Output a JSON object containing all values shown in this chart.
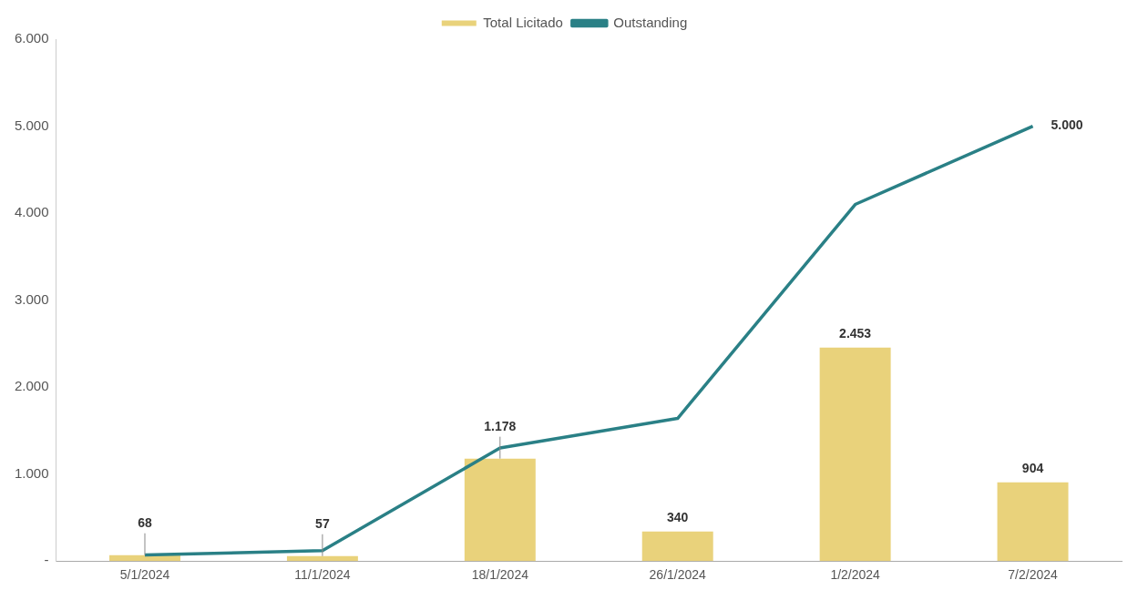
{
  "chart_data": {
    "type": "bar",
    "categories": [
      "5/1/2024",
      "11/1/2024",
      "18/1/2024",
      "26/1/2024",
      "1/2/2024",
      "7/2/2024"
    ],
    "series": [
      {
        "name": "Total Licitado",
        "color": "#e9d27b",
        "values": [
          68,
          57,
          1178,
          340,
          2453,
          904
        ],
        "value_labels": [
          "68",
          "57",
          "1.178",
          "340",
          "2.453",
          "904"
        ]
      },
      {
        "name": "Outstanding",
        "type": "line",
        "color": "#2a8086",
        "values": [
          70,
          120,
          1300,
          1640,
          4100,
          5000
        ],
        "value_labels": [
          null,
          null,
          null,
          null,
          null,
          "5.000"
        ]
      }
    ],
    "ylim": [
      0,
      6000
    ],
    "yticks": [
      {
        "value": 0,
        "label": "-"
      },
      {
        "value": 1000,
        "label": "1.000"
      },
      {
        "value": 2000,
        "label": "2.000"
      },
      {
        "value": 3000,
        "label": "3.000"
      },
      {
        "value": 4000,
        "label": "4.000"
      },
      {
        "value": 5000,
        "label": "5.000"
      },
      {
        "value": 6000,
        "label": "6.000"
      }
    ],
    "grid": false,
    "legend": "top",
    "marker": "none",
    "line_style": "solid"
  }
}
